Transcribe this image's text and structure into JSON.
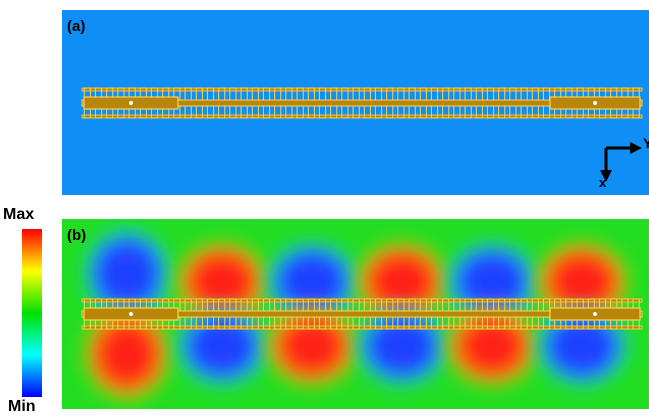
{
  "panels": {
    "a": {
      "label": "(a)"
    },
    "b": {
      "label": "(b)"
    }
  },
  "colorbar": {
    "max_label": "Max",
    "min_label": "Min",
    "colors": [
      "#ff0000",
      "#ffff00",
      "#00e000",
      "#00ffff",
      "#0000ff"
    ]
  },
  "axes": {
    "y_label": "Y",
    "x_label": "x"
  },
  "colors": {
    "background_a": "#0f8ef5",
    "background_b": "#22dd22",
    "metal": "#b8860b",
    "metal_edge": "#ffd34d",
    "field_positive": "#ff1a1a",
    "field_negative": "#1f3fff"
  },
  "structure": {
    "comb_finger_count": 50,
    "field_lobe_count": 6
  }
}
